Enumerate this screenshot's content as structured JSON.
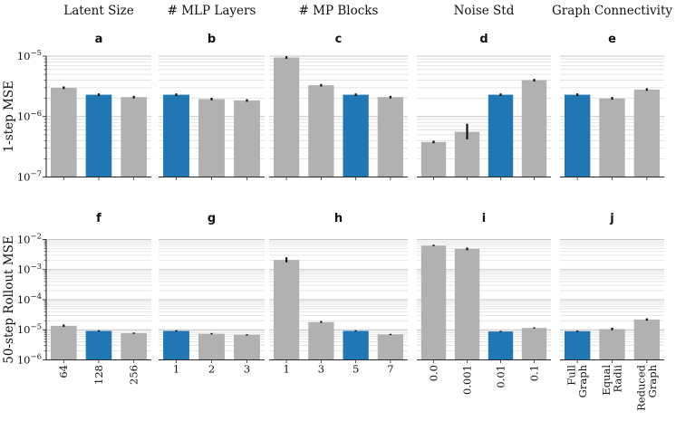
{
  "figure": {
    "background": "#ffffff",
    "bar_gray": "#b1b1b1",
    "bar_blue": "#2176b4",
    "grid_major": "#c6c6c6",
    "grid_minor": "#dedede",
    "axis_color": "#2a2a2a",
    "error_color": "#111111"
  },
  "chart_data": {
    "type": "bar",
    "scale": "log",
    "grid": true,
    "legend": "none",
    "columns": [
      {
        "title": "Latent Size",
        "letter_top": "a",
        "letter_bottom": "f",
        "categories": [
          "64",
          "128",
          "256"
        ],
        "highlight_index": 1,
        "xtick_rotated": true
      },
      {
        "title": "# MLP Layers",
        "letter_top": "b",
        "letter_bottom": "g",
        "categories": [
          "1",
          "2",
          "3"
        ],
        "highlight_index": 0,
        "xtick_rotated": false
      },
      {
        "title": "# MP Blocks",
        "letter_top": "c",
        "letter_bottom": "h",
        "categories": [
          "1",
          "3",
          "5",
          "7"
        ],
        "highlight_index": 2,
        "xtick_rotated": false
      },
      {
        "title": "Noise Std",
        "letter_top": "d",
        "letter_bottom": "i",
        "categories": [
          "0.0",
          "0.001",
          "0.01",
          "0.1"
        ],
        "highlight_index": 2,
        "xtick_rotated": true
      },
      {
        "title": "Graph Connectivity",
        "letter_top": "e",
        "letter_bottom": "j",
        "categories": [
          [
            "Full",
            "Graph"
          ],
          [
            "Equal",
            "Radii"
          ],
          [
            "Reduced",
            "Graph"
          ]
        ],
        "highlight_index": 0,
        "xtick_rotated": true
      }
    ],
    "rows": [
      {
        "ylabel": "1-step MSE",
        "ylim": [
          1e-07,
          1e-05
        ],
        "ytick_exponents": [
          -5,
          -6,
          -7
        ],
        "show_xtick_labels": false,
        "values": [
          [
            3e-06,
            2.3e-06,
            2.1e-06
          ],
          [
            2.3e-06,
            1.95e-06,
            1.85e-06
          ],
          [
            9.5e-06,
            3.3e-06,
            2.3e-06,
            2.1e-06
          ],
          [
            3.8e-07,
            5.6e-07,
            2.3e-06,
            4e-06
          ],
          [
            2.3e-06,
            2e-06,
            2.8e-06
          ]
        ],
        "errors": [
          [
            null,
            null,
            null
          ],
          [
            null,
            null,
            null
          ],
          [
            null,
            null,
            null,
            null
          ],
          [
            null,
            [
              4.2e-07,
              7.6e-07
            ],
            null,
            null
          ],
          [
            null,
            null,
            null
          ]
        ]
      },
      {
        "ylabel": "50-step Rollout MSE",
        "ylim": [
          1e-06,
          0.01
        ],
        "ytick_exponents": [
          -2,
          -3,
          -4,
          -5,
          -6
        ],
        "show_xtick_labels": true,
        "values": [
          [
            1.35e-05,
            9.2e-06,
            7.7e-06
          ],
          [
            9.2e-06,
            7.4e-06,
            6.8e-06
          ],
          [
            0.0021,
            1.8e-05,
            9.2e-06,
            7e-06
          ],
          [
            0.0063,
            0.0049,
            8.8e-06,
            1.15e-05
          ],
          [
            9e-06,
            1.05e-05,
            2.2e-05
          ]
        ],
        "errors": [
          [
            [
              1.25e-05,
              1.5e-05
            ],
            null,
            null
          ],
          [
            null,
            null,
            null
          ],
          [
            [
              0.00175,
              0.00255
            ],
            [
              1.7e-05,
              1.95e-05
            ],
            null,
            null
          ],
          [
            [
              0.006,
              0.0067
            ],
            [
              0.0044,
              0.0054
            ],
            null,
            null
          ],
          [
            null,
            [
              9.6e-06,
              1.17e-05
            ],
            [
              2e-05,
              2.4e-05
            ]
          ]
        ]
      }
    ]
  }
}
